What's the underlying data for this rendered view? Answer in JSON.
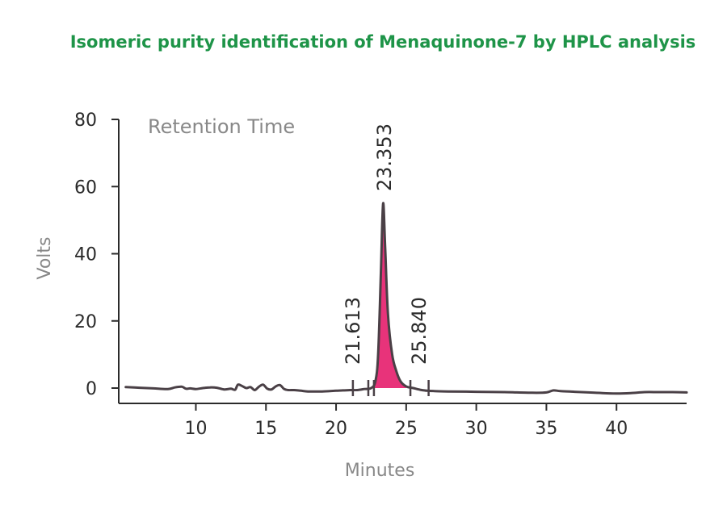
{
  "chart_data": {
    "type": "line",
    "title": "Isomeric purity identification of Menaquinone-7 by HPLC analysis",
    "xlabel": "Minutes",
    "ylabel": "Volts",
    "annotation": "Retention Time",
    "xlim": [
      4.5,
      45
    ],
    "ylim": [
      -2,
      80
    ],
    "x_ticks": [
      10,
      15,
      20,
      25,
      30,
      35,
      40
    ],
    "y_ticks": [
      0,
      20,
      40,
      60,
      80
    ],
    "series": [
      {
        "color": "#4a4046",
        "x": [
          5,
          6,
          7,
          8,
          8.5,
          9,
          9.3,
          9.6,
          10,
          10.5,
          11,
          11.5,
          12,
          12.5,
          12.8,
          13,
          13.3,
          13.6,
          13.9,
          14.2,
          14.5,
          14.8,
          15.1,
          15.4,
          15.7,
          16.0,
          16.3,
          16.6,
          17,
          17.5,
          18,
          19,
          20,
          20.5,
          21,
          21.5,
          22,
          22.5,
          22.8,
          23.0,
          23.2,
          23.353,
          23.5,
          23.7,
          24.0,
          24.3,
          24.6,
          25.0,
          25.5,
          26,
          26.5,
          27,
          28,
          30,
          32,
          34,
          35,
          35.5,
          36,
          37,
          38,
          39,
          40,
          41,
          42,
          43,
          44,
          45
        ],
        "y": [
          0.3,
          0.1,
          -0.1,
          -0.3,
          0.2,
          0.4,
          -0.2,
          -0.1,
          -0.3,
          0.0,
          0.2,
          0.1,
          -0.4,
          -0.2,
          -0.5,
          1.0,
          0.6,
          0.0,
          0.3,
          -0.6,
          0.4,
          1.0,
          -0.2,
          -0.4,
          0.5,
          0.9,
          -0.3,
          -0.6,
          -0.6,
          -0.8,
          -1.0,
          -1.0,
          -0.8,
          -0.7,
          -0.6,
          -0.6,
          -0.3,
          0.0,
          2.0,
          10.0,
          35.0,
          55.0,
          42.0,
          22.0,
          10.0,
          5.0,
          2.0,
          0.5,
          0.0,
          -0.5,
          -0.8,
          -0.9,
          -1.0,
          -1.1,
          -1.2,
          -1.4,
          -1.3,
          -0.7,
          -0.9,
          -1.1,
          -1.3,
          -1.5,
          -1.6,
          -1.5,
          -1.2,
          -1.2,
          -1.2,
          -1.3
        ]
      }
    ],
    "filled_peak": {
      "color": "#e8337a",
      "x_start": 22.5,
      "x_end": 25.0
    },
    "peaks": [
      {
        "label": "21.613",
        "x": 21.613
      },
      {
        "label": "23.353",
        "x": 23.353
      },
      {
        "label": "25.840",
        "x": 25.84
      }
    ],
    "grid": false,
    "legend": "none"
  }
}
